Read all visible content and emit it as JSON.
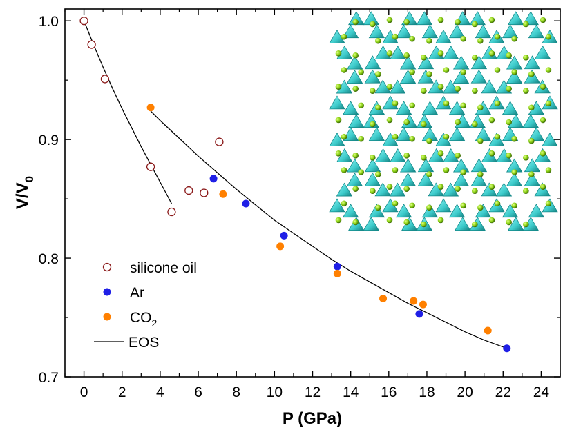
{
  "chart_data": {
    "type": "scatter",
    "xlabel": "P (GPa)",
    "ylabel_main": "V/V",
    "ylabel_sub": "0",
    "xlim": [
      -1,
      25
    ],
    "ylim": [
      0.7,
      1.01
    ],
    "xticks": [
      0,
      2,
      4,
      6,
      8,
      10,
      12,
      14,
      16,
      18,
      20,
      22,
      24
    ],
    "yticks": [
      0.7,
      0.8,
      0.9,
      1.0
    ],
    "ytick_labels": [
      "0.7",
      "0.8",
      "0.9",
      "1.0"
    ],
    "grid": false,
    "legend_position": "bottom-left",
    "series": [
      {
        "name": "silicone oil",
        "marker": "open-circle",
        "color": "#8b1a1a",
        "points": [
          [
            0.0,
            1.0
          ],
          [
            0.4,
            0.98
          ],
          [
            1.1,
            0.951
          ],
          [
            3.5,
            0.877
          ],
          [
            4.6,
            0.839
          ],
          [
            5.5,
            0.857
          ],
          [
            6.3,
            0.855
          ],
          [
            7.1,
            0.898
          ]
        ]
      },
      {
        "name": "Ar",
        "marker": "filled-circle",
        "color": "#1f1fe6",
        "points": [
          [
            6.8,
            0.867
          ],
          [
            8.5,
            0.846
          ],
          [
            10.5,
            0.819
          ],
          [
            13.3,
            0.793
          ],
          [
            17.6,
            0.753
          ],
          [
            22.2,
            0.724
          ]
        ]
      },
      {
        "name": "CO",
        "name_sub": "2",
        "marker": "filled-circle",
        "color": "#ff8000",
        "points": [
          [
            3.5,
            0.927
          ],
          [
            7.3,
            0.854
          ],
          [
            10.3,
            0.81
          ],
          [
            13.3,
            0.787
          ],
          [
            15.7,
            0.766
          ],
          [
            17.3,
            0.764
          ],
          [
            17.8,
            0.761
          ],
          [
            21.2,
            0.739
          ]
        ]
      }
    ],
    "eos_label": "EOS",
    "eos_curves": [
      {
        "segment": "silicone oil",
        "points": [
          [
            0.0,
            1.0
          ],
          [
            0.5,
            0.98
          ],
          [
            1.0,
            0.961
          ],
          [
            1.5,
            0.943
          ],
          [
            2.0,
            0.926
          ],
          [
            2.5,
            0.91
          ],
          [
            3.0,
            0.894
          ],
          [
            3.5,
            0.879
          ],
          [
            4.0,
            0.864
          ],
          [
            4.6,
            0.846
          ]
        ]
      },
      {
        "segment": "pressure medium",
        "points": [
          [
            3.5,
            0.924
          ],
          [
            4.0,
            0.916
          ],
          [
            5.0,
            0.901
          ],
          [
            6.0,
            0.886
          ],
          [
            7.0,
            0.872
          ],
          [
            8.0,
            0.858
          ],
          [
            9.0,
            0.845
          ],
          [
            10.0,
            0.832
          ],
          [
            11.0,
            0.821
          ],
          [
            12.0,
            0.81
          ],
          [
            13.0,
            0.799
          ],
          [
            14.0,
            0.789
          ],
          [
            15.0,
            0.78
          ],
          [
            16.0,
            0.771
          ],
          [
            17.0,
            0.762
          ],
          [
            18.0,
            0.754
          ],
          [
            19.0,
            0.746
          ],
          [
            20.0,
            0.738
          ],
          [
            21.0,
            0.731
          ],
          [
            22.2,
            0.724
          ]
        ]
      }
    ]
  },
  "colors": {
    "tetrahedra": "#4fd6d6",
    "tetrahedra_dark": "#148a8a",
    "atoms": "#8fd416",
    "atom_dark": "#3d6b08"
  },
  "inset": {
    "icon": "zeolite-framework-structure-image"
  }
}
